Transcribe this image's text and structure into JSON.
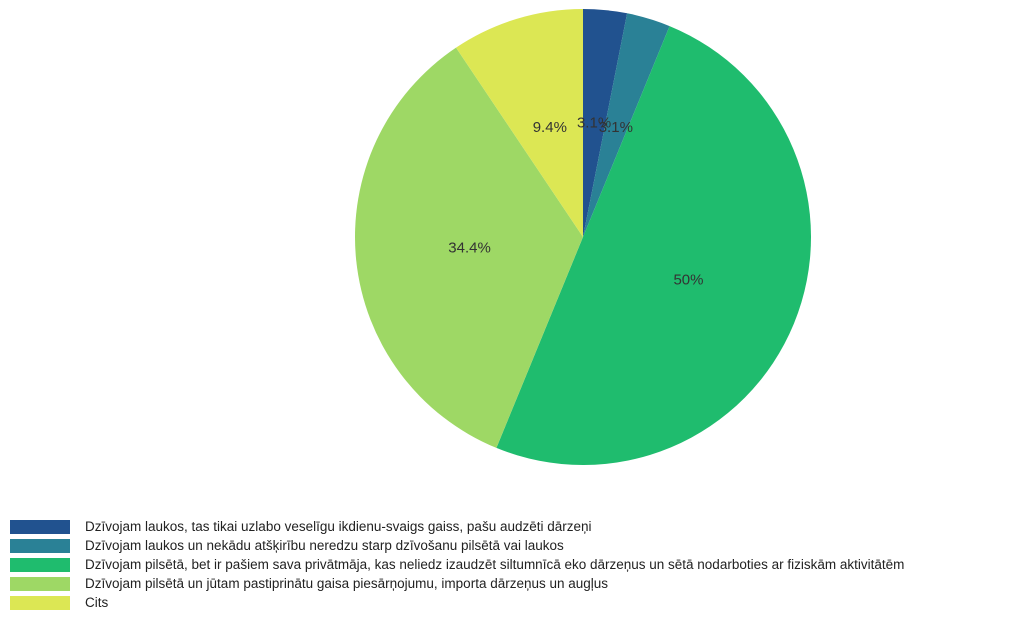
{
  "chart_data": {
    "type": "pie",
    "categories": [
      "Dzīvojam laukos, tas tikai uzlabo veselīgu ikdienu-svaigs gaiss, pašu audzēti dārzeņi",
      "Dzīvojam laukos un nekādu atšķirību neredzu starp dzīvošanu pilsētā vai laukos",
      "Dzīvojam pilsētā, bet ir pašiem sava privātmāja, kas neliedz izaudzēt siltumnīcā eko dārzeņus un sētā nodarboties ar fiziskām aktivitātēm",
      "Dzīvojam pilsētā un jūtam pastiprinātu gaisa piesārņojumu, importa dārzeņus un augļus",
      "Cits"
    ],
    "values": [
      3.1,
      3.1,
      50,
      34.4,
      9.4
    ],
    "value_labels": [
      "3.1%",
      "3.1%",
      "50%",
      "34.4%",
      "9.4%"
    ],
    "colors": [
      "#21528f",
      "#2a8196",
      "#1fbc6e",
      "#9ed865",
      "#dce754"
    ]
  }
}
